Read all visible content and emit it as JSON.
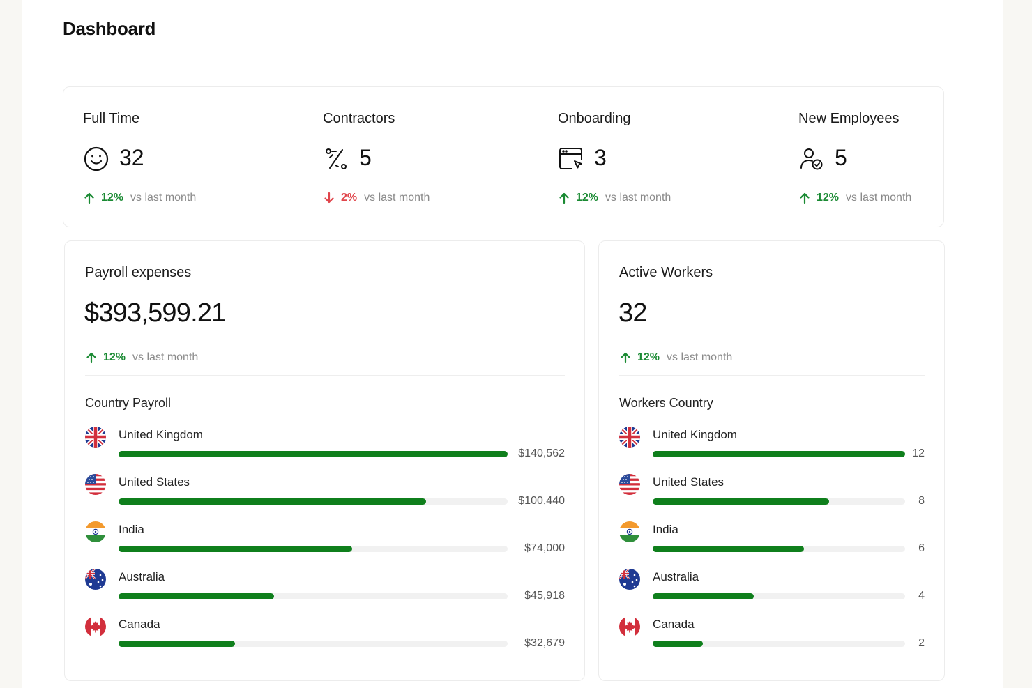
{
  "page": {
    "title": "Dashboard"
  },
  "colors": {
    "up": "#1a8a33",
    "down": "#e0454b",
    "bar": "#0f7f1c",
    "track": "#f1f1f1"
  },
  "stats": [
    {
      "label": "Full Time",
      "icon": "smiley-icon",
      "value": "32",
      "trend": {
        "direction": "up",
        "pct": "12%",
        "text": "vs last month"
      }
    },
    {
      "label": "Contractors",
      "icon": "route-icon",
      "value": "5",
      "trend": {
        "direction": "down",
        "pct": "2%",
        "text": "vs last month"
      }
    },
    {
      "label": "Onboarding",
      "icon": "browser-cursor-icon",
      "value": "3",
      "trend": {
        "direction": "up",
        "pct": "12%",
        "text": "vs last month"
      }
    },
    {
      "label": "New Employees",
      "icon": "user-check-icon",
      "value": "5",
      "trend": {
        "direction": "up",
        "pct": "12%",
        "text": "vs last month"
      }
    }
  ],
  "payroll": {
    "title": "Payroll expenses",
    "value": "$393,599.21",
    "trend": {
      "direction": "up",
      "pct": "12%",
      "text": "vs last month"
    },
    "section": "Country Payroll",
    "rows": [
      {
        "country": "United Kingdom",
        "flag": "uk-flag-icon",
        "amount": "$140,562",
        "fraction": 1.0
      },
      {
        "country": "United States",
        "flag": "us-flag-icon",
        "amount": "$100,440",
        "fraction": 0.79
      },
      {
        "country": "India",
        "flag": "india-flag-icon",
        "amount": "$74,000",
        "fraction": 0.6
      },
      {
        "country": "Australia",
        "flag": "australia-flag-icon",
        "amount": "$45,918",
        "fraction": 0.4
      },
      {
        "country": "Canada",
        "flag": "canada-flag-icon",
        "amount": "$32,679",
        "fraction": 0.3
      }
    ]
  },
  "workers": {
    "title": "Active Workers",
    "value": "32",
    "trend": {
      "direction": "up",
      "pct": "12%",
      "text": "vs last month"
    },
    "section": "Workers Country",
    "rows": [
      {
        "country": "United Kingdom",
        "flag": "uk-flag-icon",
        "amount": "12",
        "fraction": 1.0
      },
      {
        "country": "United States",
        "flag": "us-flag-icon",
        "amount": "8",
        "fraction": 0.7
      },
      {
        "country": "India",
        "flag": "india-flag-icon",
        "amount": "6",
        "fraction": 0.6
      },
      {
        "country": "Australia",
        "flag": "australia-flag-icon",
        "amount": "4",
        "fraction": 0.4
      },
      {
        "country": "Canada",
        "flag": "canada-flag-icon",
        "amount": "2",
        "fraction": 0.2
      }
    ]
  }
}
